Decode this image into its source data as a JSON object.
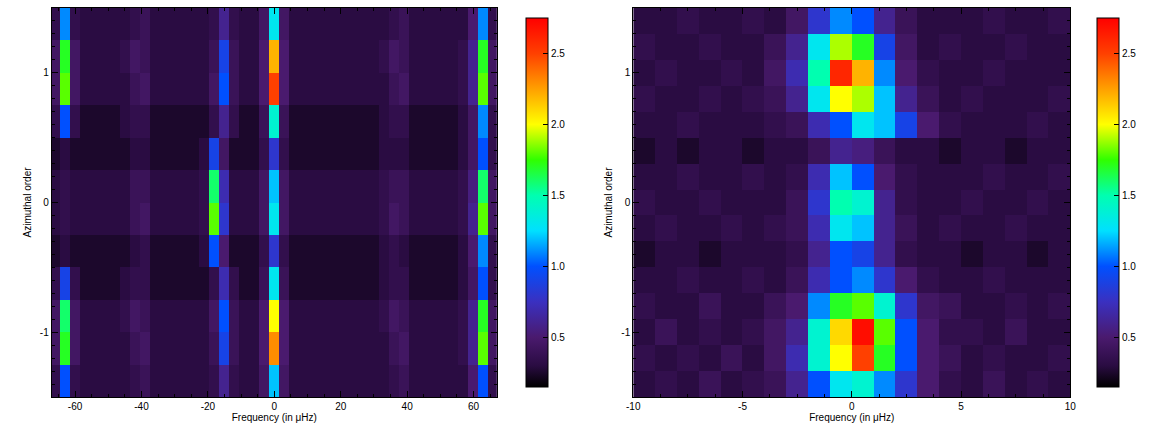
{
  "chart_data": [
    {
      "type": "heatmap",
      "xlabel": "Frequency (in μHz)",
      "ylabel": "Azimuthal order",
      "xlim": [
        -67,
        67
      ],
      "ylim": [
        -1.5,
        1.5
      ],
      "xticks": [
        -60,
        -40,
        -20,
        0,
        20,
        40,
        60
      ],
      "yticks": [
        -1,
        0,
        1
      ],
      "zlim": [
        0.15,
        2.75
      ],
      "zticks": [
        0.5,
        {
          "value": 1,
          "label": "1.0"
        },
        1.5,
        {
          "value": 2,
          "label": "2.0"
        },
        2.5
      ],
      "x": [
        -66,
        -63,
        -60,
        -57,
        -54,
        -51,
        -48,
        -45,
        -42,
        -39,
        -36,
        -33,
        -30,
        -27,
        -24,
        -21,
        -18,
        -15,
        -12,
        -9,
        -6,
        -3,
        0,
        3,
        6,
        9,
        12,
        15,
        18,
        21,
        24,
        27,
        30,
        33,
        36,
        39,
        42,
        45,
        48,
        51,
        54,
        57,
        60,
        63,
        66
      ],
      "y": [
        -1.375,
        -1.125,
        -0.875,
        -0.625,
        -0.375,
        -0.125,
        0.125,
        0.375,
        0.625,
        0.875,
        1.125,
        1.375
      ],
      "z": [
        [
          0.35,
          1.0,
          0.35,
          0.3,
          0.3,
          0.3,
          0.3,
          0.3,
          0.35,
          0.4,
          0.3,
          0.3,
          0.3,
          0.3,
          0.3,
          0.3,
          0.35,
          0.6,
          0.35,
          0.3,
          0.3,
          0.45,
          1.2,
          0.45,
          0.3,
          0.3,
          0.3,
          0.3,
          0.3,
          0.3,
          0.3,
          0.3,
          0.3,
          0.3,
          0.35,
          0.4,
          0.3,
          0.3,
          0.3,
          0.3,
          0.3,
          0.3,
          0.5,
          1.0,
          0.35
        ],
        [
          0.45,
          1.7,
          0.45,
          0.3,
          0.3,
          0.3,
          0.3,
          0.3,
          0.4,
          0.45,
          0.3,
          0.3,
          0.3,
          0.3,
          0.3,
          0.3,
          0.4,
          0.9,
          0.4,
          0.3,
          0.3,
          0.5,
          2.3,
          0.5,
          0.3,
          0.3,
          0.3,
          0.3,
          0.3,
          0.3,
          0.3,
          0.3,
          0.3,
          0.3,
          0.4,
          0.45,
          0.3,
          0.3,
          0.3,
          0.3,
          0.3,
          0.35,
          0.6,
          1.8,
          0.45
        ],
        [
          0.45,
          1.6,
          0.45,
          0.3,
          0.3,
          0.3,
          0.3,
          0.35,
          0.45,
          0.4,
          0.3,
          0.3,
          0.3,
          0.3,
          0.3,
          0.3,
          0.45,
          1.0,
          0.4,
          0.3,
          0.3,
          0.5,
          2.0,
          0.5,
          0.3,
          0.3,
          0.3,
          0.3,
          0.3,
          0.3,
          0.3,
          0.3,
          0.3,
          0.35,
          0.45,
          0.4,
          0.3,
          0.3,
          0.3,
          0.3,
          0.3,
          0.35,
          0.6,
          1.7,
          0.45
        ],
        [
          0.35,
          0.9,
          0.35,
          0.25,
          0.25,
          0.25,
          0.25,
          0.3,
          0.35,
          0.35,
          0.25,
          0.25,
          0.25,
          0.25,
          0.25,
          0.25,
          0.35,
          0.7,
          0.35,
          0.25,
          0.25,
          0.4,
          1.3,
          0.4,
          0.25,
          0.25,
          0.25,
          0.25,
          0.25,
          0.25,
          0.25,
          0.25,
          0.25,
          0.3,
          0.35,
          0.35,
          0.25,
          0.25,
          0.25,
          0.25,
          0.25,
          0.3,
          0.45,
          1.0,
          0.35
        ],
        [
          0.25,
          0.3,
          0.25,
          0.25,
          0.25,
          0.25,
          0.25,
          0.25,
          0.3,
          0.35,
          0.25,
          0.25,
          0.25,
          0.25,
          0.25,
          0.3,
          1.0,
          0.5,
          0.25,
          0.25,
          0.25,
          0.35,
          0.8,
          0.35,
          0.25,
          0.25,
          0.25,
          0.25,
          0.25,
          0.25,
          0.25,
          0.25,
          0.25,
          0.3,
          0.35,
          0.3,
          0.25,
          0.25,
          0.25,
          0.25,
          0.25,
          0.3,
          0.5,
          1.1,
          0.35
        ],
        [
          0.3,
          0.35,
          0.3,
          0.3,
          0.3,
          0.3,
          0.3,
          0.3,
          0.4,
          0.45,
          0.3,
          0.3,
          0.3,
          0.3,
          0.3,
          0.35,
          1.8,
          0.8,
          0.3,
          0.3,
          0.3,
          0.45,
          1.3,
          0.45,
          0.3,
          0.3,
          0.3,
          0.3,
          0.3,
          0.3,
          0.3,
          0.3,
          0.3,
          0.35,
          0.45,
          0.4,
          0.3,
          0.3,
          0.3,
          0.3,
          0.3,
          0.35,
          0.6,
          1.8,
          0.45
        ],
        [
          0.3,
          0.35,
          0.3,
          0.3,
          0.3,
          0.3,
          0.3,
          0.3,
          0.4,
          0.4,
          0.3,
          0.3,
          0.3,
          0.3,
          0.3,
          0.35,
          1.6,
          0.7,
          0.3,
          0.3,
          0.3,
          0.45,
          1.2,
          0.45,
          0.3,
          0.3,
          0.3,
          0.3,
          0.3,
          0.3,
          0.3,
          0.3,
          0.3,
          0.35,
          0.4,
          0.4,
          0.3,
          0.3,
          0.3,
          0.3,
          0.3,
          0.35,
          0.55,
          1.6,
          0.45
        ],
        [
          0.25,
          0.3,
          0.25,
          0.25,
          0.25,
          0.25,
          0.25,
          0.25,
          0.3,
          0.3,
          0.25,
          0.25,
          0.25,
          0.25,
          0.25,
          0.3,
          0.9,
          0.45,
          0.25,
          0.25,
          0.25,
          0.35,
          0.8,
          0.35,
          0.25,
          0.25,
          0.25,
          0.25,
          0.25,
          0.25,
          0.25,
          0.25,
          0.25,
          0.3,
          0.3,
          0.3,
          0.25,
          0.25,
          0.25,
          0.25,
          0.25,
          0.3,
          0.45,
          1.0,
          0.35
        ],
        [
          0.35,
          1.0,
          0.35,
          0.25,
          0.25,
          0.25,
          0.25,
          0.3,
          0.35,
          0.35,
          0.25,
          0.25,
          0.25,
          0.25,
          0.25,
          0.25,
          0.35,
          0.6,
          0.35,
          0.25,
          0.25,
          0.4,
          1.4,
          0.4,
          0.25,
          0.25,
          0.25,
          0.25,
          0.25,
          0.25,
          0.25,
          0.25,
          0.25,
          0.3,
          0.35,
          0.35,
          0.25,
          0.25,
          0.25,
          0.25,
          0.25,
          0.3,
          0.45,
          1.1,
          0.35
        ],
        [
          0.45,
          1.8,
          0.45,
          0.3,
          0.3,
          0.3,
          0.3,
          0.3,
          0.4,
          0.45,
          0.3,
          0.3,
          0.3,
          0.3,
          0.3,
          0.3,
          0.45,
          1.0,
          0.4,
          0.3,
          0.3,
          0.5,
          2.5,
          0.5,
          0.3,
          0.3,
          0.3,
          0.3,
          0.3,
          0.3,
          0.3,
          0.3,
          0.3,
          0.3,
          0.4,
          0.45,
          0.3,
          0.3,
          0.3,
          0.3,
          0.3,
          0.35,
          0.6,
          1.8,
          0.45
        ],
        [
          0.45,
          1.7,
          0.45,
          0.3,
          0.3,
          0.3,
          0.3,
          0.35,
          0.45,
          0.4,
          0.3,
          0.3,
          0.3,
          0.3,
          0.3,
          0.3,
          0.4,
          0.9,
          0.4,
          0.3,
          0.3,
          0.5,
          2.2,
          0.5,
          0.3,
          0.3,
          0.3,
          0.3,
          0.3,
          0.3,
          0.3,
          0.3,
          0.3,
          0.35,
          0.45,
          0.4,
          0.3,
          0.3,
          0.3,
          0.3,
          0.3,
          0.35,
          0.6,
          1.7,
          0.45
        ],
        [
          0.35,
          1.1,
          0.35,
          0.3,
          0.3,
          0.3,
          0.3,
          0.3,
          0.35,
          0.4,
          0.3,
          0.3,
          0.3,
          0.3,
          0.3,
          0.3,
          0.35,
          0.6,
          0.35,
          0.3,
          0.3,
          0.45,
          1.3,
          0.45,
          0.3,
          0.3,
          0.3,
          0.3,
          0.3,
          0.3,
          0.3,
          0.3,
          0.3,
          0.3,
          0.35,
          0.4,
          0.3,
          0.3,
          0.3,
          0.3,
          0.3,
          0.3,
          0.5,
          1.1,
          0.35
        ]
      ]
    },
    {
      "type": "heatmap",
      "xlabel": "Frequency (in μHz)",
      "ylabel": "Azimuthal order",
      "xlim": [
        -10,
        10
      ],
      "ylim": [
        -1.5,
        1.5
      ],
      "xticks": [
        -10,
        -5,
        0,
        5,
        10
      ],
      "yticks": [
        -1,
        0,
        1
      ],
      "zlim": [
        0.15,
        2.75
      ],
      "zticks": [
        0.5,
        {
          "value": 1,
          "label": "1.0"
        },
        1.5,
        {
          "value": 2,
          "label": "2.0"
        },
        2.5
      ],
      "x": [
        -9.5,
        -8.5,
        -7.5,
        -6.5,
        -5.5,
        -4.5,
        -3.5,
        -2.5,
        -1.5,
        -0.5,
        0.5,
        1.5,
        2.5,
        3.5,
        4.5,
        5.5,
        6.5,
        7.5,
        8.5,
        9.5
      ],
      "y": [
        -1.4,
        -1.2,
        -1.0,
        -0.8,
        -0.6,
        -0.4,
        -0.2,
        0,
        0.2,
        0.4,
        0.6,
        0.8,
        1.0,
        1.2,
        1.4
      ],
      "z": [
        [
          0.3,
          0.35,
          0.3,
          0.4,
          0.3,
          0.35,
          0.4,
          0.6,
          1.0,
          1.3,
          1.4,
          1.1,
          0.8,
          0.5,
          0.35,
          0.3,
          0.4,
          0.3,
          0.35,
          0.3
        ],
        [
          0.35,
          0.3,
          0.35,
          0.3,
          0.4,
          0.3,
          0.45,
          0.7,
          1.4,
          2.0,
          2.5,
          1.7,
          1.0,
          0.5,
          0.4,
          0.3,
          0.35,
          0.3,
          0.3,
          0.35
        ],
        [
          0.3,
          0.4,
          0.3,
          0.35,
          0.3,
          0.35,
          0.45,
          0.6,
          1.4,
          2.1,
          2.7,
          1.8,
          1.0,
          0.5,
          0.35,
          0.35,
          0.3,
          0.4,
          0.3,
          0.3
        ],
        [
          0.35,
          0.3,
          0.3,
          0.4,
          0.3,
          0.3,
          0.4,
          0.5,
          1.1,
          1.7,
          1.8,
          1.4,
          0.8,
          0.45,
          0.4,
          0.3,
          0.3,
          0.35,
          0.3,
          0.35
        ],
        [
          0.3,
          0.3,
          0.35,
          0.3,
          0.3,
          0.35,
          0.3,
          0.4,
          0.7,
          1.0,
          1.1,
          0.8,
          0.5,
          0.35,
          0.3,
          0.3,
          0.35,
          0.3,
          0.3,
          0.3
        ],
        [
          0.25,
          0.3,
          0.3,
          0.25,
          0.3,
          0.3,
          0.3,
          0.35,
          0.6,
          1.0,
          0.9,
          0.6,
          0.35,
          0.3,
          0.3,
          0.25,
          0.3,
          0.3,
          0.25,
          0.3
        ],
        [
          0.3,
          0.35,
          0.3,
          0.3,
          0.35,
          0.3,
          0.35,
          0.4,
          0.7,
          1.3,
          1.2,
          0.6,
          0.4,
          0.3,
          0.35,
          0.3,
          0.3,
          0.35,
          0.3,
          0.3
        ],
        [
          0.35,
          0.3,
          0.3,
          0.35,
          0.3,
          0.3,
          0.3,
          0.4,
          0.8,
          1.5,
          1.4,
          0.6,
          0.35,
          0.3,
          0.3,
          0.35,
          0.3,
          0.3,
          0.35,
          0.3
        ],
        [
          0.3,
          0.3,
          0.35,
          0.3,
          0.3,
          0.35,
          0.3,
          0.35,
          0.7,
          1.2,
          1.0,
          0.5,
          0.35,
          0.3,
          0.3,
          0.3,
          0.35,
          0.3,
          0.3,
          0.35
        ],
        [
          0.25,
          0.3,
          0.25,
          0.3,
          0.3,
          0.25,
          0.3,
          0.3,
          0.4,
          0.6,
          0.55,
          0.4,
          0.3,
          0.3,
          0.25,
          0.3,
          0.3,
          0.25,
          0.3,
          0.3
        ],
        [
          0.3,
          0.3,
          0.35,
          0.3,
          0.3,
          0.3,
          0.35,
          0.4,
          0.7,
          1.0,
          1.3,
          1.2,
          0.9,
          0.5,
          0.35,
          0.3,
          0.3,
          0.3,
          0.35,
          0.3
        ],
        [
          0.35,
          0.3,
          0.3,
          0.35,
          0.3,
          0.35,
          0.4,
          0.6,
          1.3,
          2.0,
          1.9,
          1.2,
          0.6,
          0.4,
          0.3,
          0.35,
          0.3,
          0.3,
          0.3,
          0.35
        ],
        [
          0.3,
          0.35,
          0.3,
          0.3,
          0.35,
          0.3,
          0.45,
          0.7,
          1.5,
          2.6,
          2.2,
          1.1,
          0.5,
          0.35,
          0.3,
          0.3,
          0.35,
          0.3,
          0.3,
          0.3
        ],
        [
          0.35,
          0.3,
          0.3,
          0.35,
          0.3,
          0.3,
          0.4,
          0.6,
          1.3,
          1.9,
          1.7,
          0.9,
          0.45,
          0.3,
          0.35,
          0.3,
          0.3,
          0.35,
          0.3,
          0.3
        ],
        [
          0.3,
          0.3,
          0.35,
          0.3,
          0.3,
          0.35,
          0.3,
          0.45,
          0.8,
          1.1,
          1.0,
          0.6,
          0.4,
          0.3,
          0.3,
          0.3,
          0.35,
          0.3,
          0.3,
          0.35
        ]
      ]
    }
  ]
}
